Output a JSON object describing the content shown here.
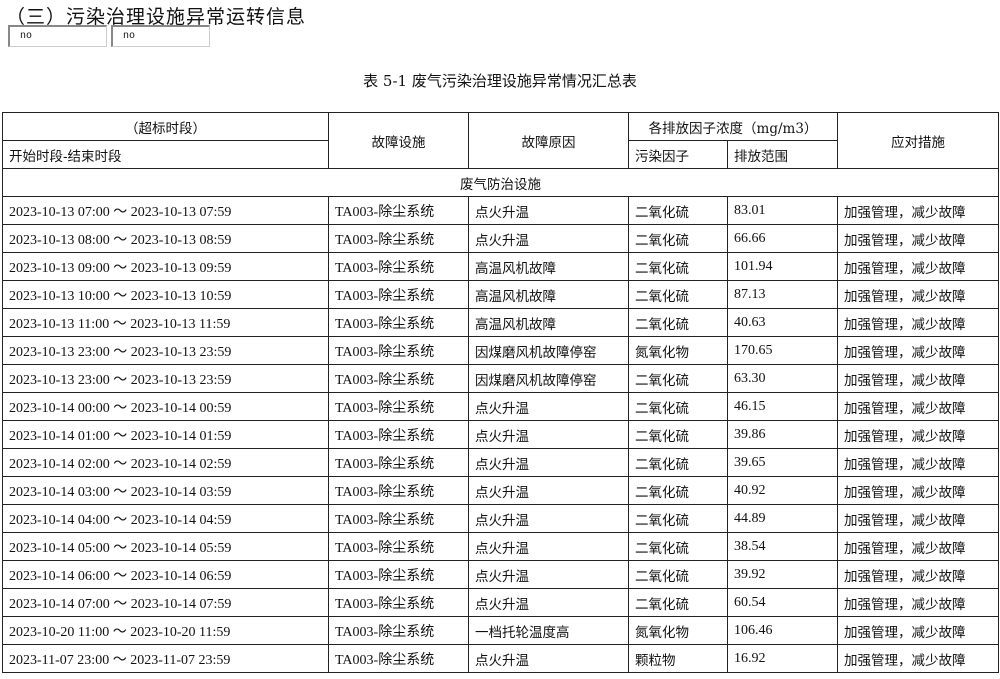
{
  "title": "（三）污染治理设施异常运转信息",
  "inputs": [
    "no",
    "no"
  ],
  "caption": "表 5-1 废气污染治理设施异常情况汇总表",
  "headers": {
    "period": "（超标时段）",
    "period_sub": "开始时段-结束时段",
    "facility": "故障设施",
    "reason": "故障原因",
    "concentration": "各排放因子浓度（mg/m3）",
    "pollutant": "污染因子",
    "range": "排放范围",
    "measures": "应对措施"
  },
  "section": "废气防治设施",
  "rows": [
    {
      "period": "2023-10-13 07:00 ～ 2023-10-13 07:59",
      "facility": "TA003-除尘系统",
      "reason": "点火升温",
      "pollutant": "二氧化硫",
      "value": "83.01",
      "measure": "加强管理，减少故障"
    },
    {
      "period": "2023-10-13 08:00 ～ 2023-10-13 08:59",
      "facility": "TA003-除尘系统",
      "reason": "点火升温",
      "pollutant": "二氧化硫",
      "value": "66.66",
      "measure": "加强管理，减少故障"
    },
    {
      "period": "2023-10-13 09:00 ～ 2023-10-13 09:59",
      "facility": "TA003-除尘系统",
      "reason": "高温风机故障",
      "pollutant": "二氧化硫",
      "value": "101.94",
      "measure": "加强管理，减少故障"
    },
    {
      "period": "2023-10-13 10:00 ～ 2023-10-13 10:59",
      "facility": "TA003-除尘系统",
      "reason": "高温风机故障",
      "pollutant": "二氧化硫",
      "value": "87.13",
      "measure": "加强管理，减少故障"
    },
    {
      "period": "2023-10-13 11:00 ～ 2023-10-13 11:59",
      "facility": "TA003-除尘系统",
      "reason": "高温风机故障",
      "pollutant": "二氧化硫",
      "value": "40.63",
      "measure": "加强管理，减少故障"
    },
    {
      "period": "2023-10-13 23:00 ～ 2023-10-13 23:59",
      "facility": "TA003-除尘系统",
      "reason": "因煤磨风机故障停窑",
      "pollutant": "氮氧化物",
      "value": "170.65",
      "measure": "加强管理，减少故障"
    },
    {
      "period": "2023-10-13 23:00 ～ 2023-10-13 23:59",
      "facility": "TA003-除尘系统",
      "reason": "因煤磨风机故障停窑",
      "pollutant": "二氧化硫",
      "value": "63.30",
      "measure": "加强管理，减少故障"
    },
    {
      "period": "2023-10-14 00:00 ～ 2023-10-14 00:59",
      "facility": "TA003-除尘系统",
      "reason": "点火升温",
      "pollutant": "二氧化硫",
      "value": "46.15",
      "measure": "加强管理，减少故障"
    },
    {
      "period": "2023-10-14 01:00 ～ 2023-10-14 01:59",
      "facility": "TA003-除尘系统",
      "reason": "点火升温",
      "pollutant": "二氧化硫",
      "value": "39.86",
      "measure": "加强管理，减少故障"
    },
    {
      "period": "2023-10-14 02:00 ～ 2023-10-14 02:59",
      "facility": "TA003-除尘系统",
      "reason": "点火升温",
      "pollutant": "二氧化硫",
      "value": "39.65",
      "measure": "加强管理，减少故障"
    },
    {
      "period": "2023-10-14 03:00 ～ 2023-10-14 03:59",
      "facility": "TA003-除尘系统",
      "reason": "点火升温",
      "pollutant": "二氧化硫",
      "value": "40.92",
      "measure": "加强管理，减少故障"
    },
    {
      "period": "2023-10-14 04:00 ～ 2023-10-14 04:59",
      "facility": "TA003-除尘系统",
      "reason": "点火升温",
      "pollutant": "二氧化硫",
      "value": "44.89",
      "measure": "加强管理，减少故障"
    },
    {
      "period": "2023-10-14 05:00 ～ 2023-10-14 05:59",
      "facility": "TA003-除尘系统",
      "reason": "点火升温",
      "pollutant": "二氧化硫",
      "value": "38.54",
      "measure": "加强管理，减少故障"
    },
    {
      "period": "2023-10-14 06:00 ～ 2023-10-14 06:59",
      "facility": "TA003-除尘系统",
      "reason": "点火升温",
      "pollutant": "二氧化硫",
      "value": "39.92",
      "measure": "加强管理，减少故障"
    },
    {
      "period": "2023-10-14 07:00 ～ 2023-10-14 07:59",
      "facility": "TA003-除尘系统",
      "reason": "点火升温",
      "pollutant": "二氧化硫",
      "value": "60.54",
      "measure": "加强管理，减少故障"
    },
    {
      "period": "2023-10-20 11:00 ～ 2023-10-20 11:59",
      "facility": "TA003-除尘系统",
      "reason": "一档托轮温度高",
      "pollutant": "氮氧化物",
      "value": "106.46",
      "measure": "加强管理，减少故障"
    },
    {
      "period": "2023-11-07 23:00 ～ 2023-11-07 23:59",
      "facility": "TA003-除尘系统",
      "reason": "点火升温",
      "pollutant": "颗粒物",
      "value": "16.92",
      "measure": "加强管理，减少故障"
    }
  ]
}
